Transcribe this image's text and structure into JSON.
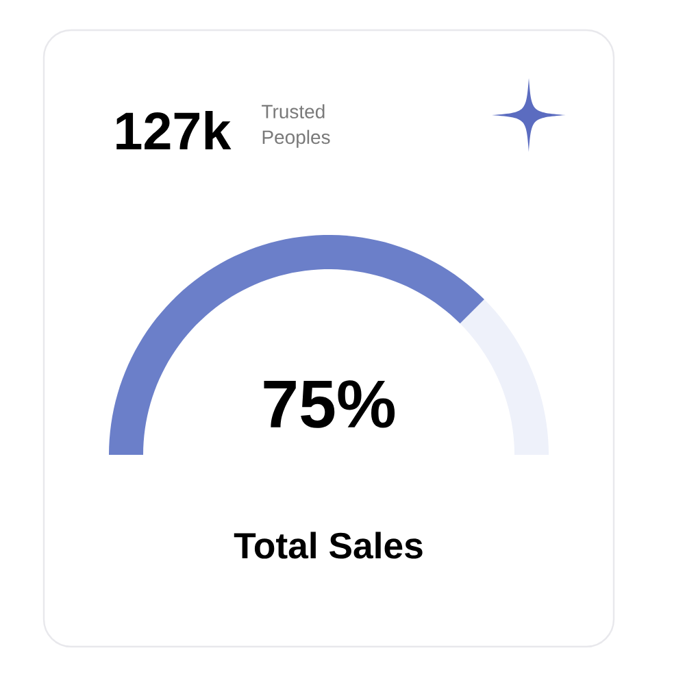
{
  "chart_data": {
    "type": "donut",
    "title": "Total Sales",
    "categories": [
      null,
      null
    ],
    "values": [
      75,
      25
    ],
    "colors": [
      "#6b7fc9",
      "#eef1fa"
    ],
    "value_labels": [
      "75%",
      null
    ],
    "annotations": [
      "127k",
      "Trusted Peoples"
    ]
  }
}
